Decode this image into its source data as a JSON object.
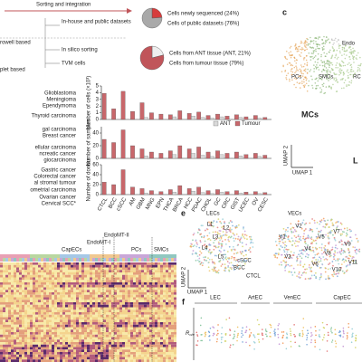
{
  "panel_a": {
    "header": "Sorting and integration",
    "steps": [
      "In-house and public datasets",
      "In silico sorting",
      "TVM cells"
    ],
    "platforms": [
      "rowell based",
      "plet based"
    ]
  },
  "pies": [
    {
      "labels": [
        "Cells newly sequenced (24%)",
        "Cells of public datasets (76%)"
      ],
      "values": [
        24,
        76
      ],
      "colors": [
        "#d63c3c",
        "#a9a9a9"
      ]
    },
    {
      "labels": [
        "Cells from ANT tissue (ANT, 21%)",
        "Cells from tumour tissue (79%)"
      ],
      "values": [
        21,
        79
      ],
      "colors": [
        "#eeeeee",
        "#c0555a"
      ]
    }
  ],
  "panel_c": {
    "label": "c",
    "clusters": [
      "Endo",
      "PCs",
      "SMCs",
      "MCs",
      "RC"
    ],
    "axes": [
      "UMAP 2",
      "UMAP 1"
    ],
    "side": "L"
  },
  "bars": {
    "cancer_types": [
      "Glioblastoma",
      "Meningioma",
      "Ependymoma",
      "Thyroid carcinoma",
      "gal carcinoma",
      "Breast cancer",
      "ellular carcinoma",
      "ncreatic cancer",
      "giocarcinoma",
      "Gastric cancer",
      "Colorectal cancer",
      "al stromal tumour",
      "ometrial carcinoma",
      "Ovarian cancer",
      "Cervical SCC*"
    ],
    "legend": [
      {
        "name": "ANT",
        "color": "#d9d9d9"
      },
      {
        "name": "Tumour",
        "color": "#c8676b"
      }
    ],
    "categories": [
      "CTCL",
      "BCC",
      "cSCC",
      "AM",
      "GBM",
      "MNG",
      "EPN",
      "THCA",
      "BRCA",
      "HCC",
      "PDAC",
      "CHOL",
      "GC",
      "CRC",
      "GIST",
      "UCEC",
      "OV",
      "CESC"
    ],
    "charts": [
      {
        "ylabel": "Number of cells (×10³)",
        "ylim": [
          0,
          5
        ],
        "yticks": [
          0,
          1,
          2,
          3,
          4,
          5
        ],
        "tumour": [
          3.9,
          1.6,
          4.2,
          1.2,
          2.5,
          1.0,
          0.8,
          0.7,
          1.3,
          0.9,
          1.1,
          0.6,
          0.8,
          0.5,
          0.7,
          0.4,
          0.6,
          0.3
        ],
        "ant": [
          0,
          0,
          0,
          0,
          0.3,
          0,
          0,
          0.4,
          0,
          0.5,
          0.3,
          0.2,
          0.4,
          0,
          0.3,
          0,
          0.2,
          0
        ]
      },
      {
        "ylabel": "Number of samples",
        "ylim": [
          0,
          50
        ],
        "yticks": [
          0,
          20,
          40
        ],
        "tumour": [
          30,
          25,
          45,
          20,
          15,
          10,
          8,
          12,
          20,
          15,
          18,
          10,
          12,
          8,
          10,
          6,
          8,
          5
        ],
        "ant": [
          0,
          0,
          0,
          0,
          4,
          0,
          0,
          6,
          0,
          8,
          5,
          3,
          6,
          0,
          4,
          0,
          3,
          0
        ]
      },
      {
        "ylabel": "Number of donors",
        "ylim": [
          0,
          60
        ],
        "yticks": [
          0,
          20,
          40,
          60
        ],
        "tumour": [
          25,
          20,
          50,
          15,
          12,
          8,
          6,
          10,
          18,
          12,
          15,
          8,
          10,
          6,
          8,
          5,
          6,
          4
        ],
        "ant": [
          0,
          0,
          0,
          0,
          3,
          0,
          0,
          5,
          0,
          7,
          4,
          2,
          5,
          0,
          3,
          0,
          2,
          0
        ]
      }
    ]
  },
  "panel_e": {
    "label": "e",
    "groups": [
      "LECs",
      "VECs"
    ],
    "clusters": [
      "L1",
      "L2",
      "L3",
      "L4",
      "L5",
      "V1",
      "V2",
      "V3",
      "V4",
      "V5",
      "V6",
      "V7",
      "V8",
      "V9",
      "V10",
      "V11"
    ],
    "annotations": [
      "cSCC",
      "BCC",
      "CTCL"
    ],
    "axes": [
      "UMAP 2",
      "UMAP 1"
    ]
  },
  "heatmap": {
    "groups": [
      "CapECs",
      "EndoMT-I",
      "EndoMT-II",
      "PCs",
      "SMCs"
    ]
  },
  "panel_f": {
    "label": "f",
    "groups": [
      "LEC",
      "ArtEC",
      "VenEC",
      "CapEC"
    ],
    "ylabel": "R",
    "ylabel_sub": "o/e"
  }
}
